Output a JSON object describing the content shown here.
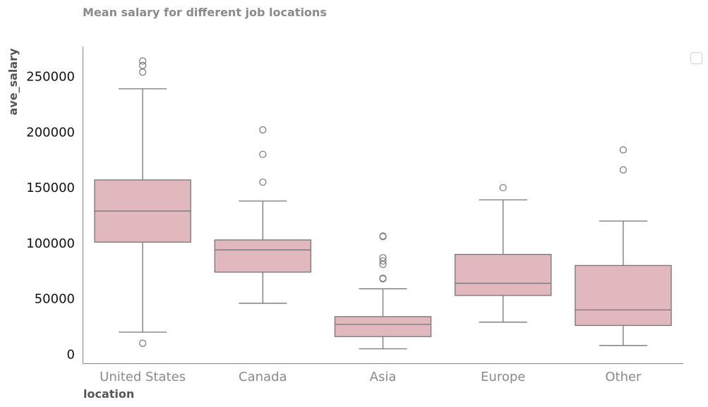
{
  "chart_data": {
    "type": "box",
    "title": "Mean salary for different job locations",
    "xlabel": "location",
    "ylabel": "ave_salary",
    "ylim": [
      -8000,
      277000
    ],
    "yticks": [
      0,
      50000,
      100000,
      150000,
      200000,
      250000
    ],
    "grid": false,
    "legend": "top-right",
    "legend_entries": [],
    "categories": [
      "United States",
      "Canada",
      "Asia",
      "Europe",
      "Other"
    ],
    "boxes": [
      {
        "category": "United States",
        "whisker_low": 20000,
        "q1": 101000,
        "median": 129000,
        "q3": 157000,
        "whisker_high": 239000,
        "outliers": [
          10000,
          254000,
          260000,
          264000
        ]
      },
      {
        "category": "Canada",
        "whisker_low": 46000,
        "q1": 74000,
        "median": 94000,
        "q3": 103000,
        "whisker_high": 138000,
        "outliers": [
          155000,
          180000,
          202000
        ]
      },
      {
        "category": "Asia",
        "whisker_low": 5000,
        "q1": 16000,
        "median": 27000,
        "q3": 34000,
        "whisker_high": 59000,
        "outliers": [
          68000,
          68500,
          81000,
          84000,
          87000,
          106000,
          106500
        ]
      },
      {
        "category": "Europe",
        "whisker_low": 29000,
        "q1": 53000,
        "median": 64000,
        "q3": 90000,
        "whisker_high": 139000,
        "outliers": [
          150000
        ]
      },
      {
        "category": "Other",
        "whisker_low": 8000,
        "q1": 26000,
        "median": 40000,
        "q3": 80000,
        "whisker_high": 120000,
        "outliers": [
          166000,
          184000
        ]
      }
    ],
    "colors": {
      "box_fill": "#e1b8be",
      "line": "#767676",
      "axis": "#888888"
    }
  }
}
